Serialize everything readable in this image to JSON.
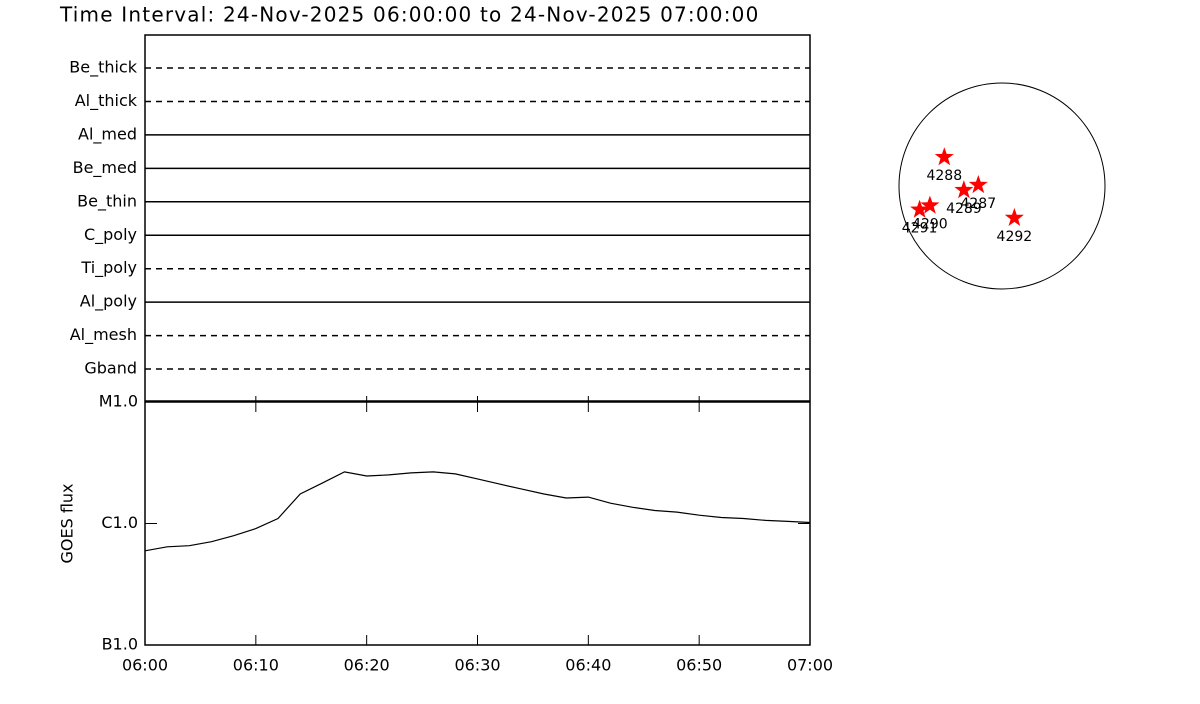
{
  "title": "Time Interval: 24-Nov-2025 06:00:00 to 24-Nov-2025 07:00:00",
  "chart_data": [
    {
      "type": "filters",
      "categories": [
        "Be_thick",
        "Al_thick",
        "Al_med",
        "Be_med",
        "Be_thin",
        "C_poly",
        "Ti_poly",
        "Al_poly",
        "Al_mesh",
        "Gband"
      ],
      "styles": [
        "dashed",
        "dashed",
        "solid",
        "solid",
        "solid",
        "solid",
        "dashed",
        "solid",
        "dashed",
        "dashed"
      ],
      "color": "#000000"
    },
    {
      "type": "line",
      "ylabel": "GOES flux",
      "log_scale": true,
      "color": "#000000",
      "x": [
        "06:00",
        "06:02",
        "06:04",
        "06:06",
        "06:08",
        "06:10",
        "06:12",
        "06:14",
        "06:16",
        "06:18",
        "06:20",
        "06:22",
        "06:24",
        "06:26",
        "06:28",
        "06:30",
        "06:32",
        "06:34",
        "06:36",
        "06:38",
        "06:40",
        "06:42",
        "06:44",
        "06:46",
        "06:48",
        "06:50",
        "06:52",
        "06:54",
        "06:56",
        "06:58",
        "07:00"
      ],
      "values": [
        5.96e-07,
        6.43e-07,
        6.56e-07,
        7.08e-07,
        7.94e-07,
        9.08e-07,
        1.1e-06,
        1.75e-06,
        2.15e-06,
        2.66e-06,
        2.46e-06,
        2.51e-06,
        2.61e-06,
        2.66e-06,
        2.56e-06,
        2.33e-06,
        2.11e-06,
        1.92e-06,
        1.75e-06,
        1.62e-06,
        1.65e-06,
        1.47e-06,
        1.36e-06,
        1.28e-06,
        1.24e-06,
        1.17e-06,
        1.12e-06,
        1.1e-06,
        1.06e-06,
        1.04e-06,
        1.02e-06
      ],
      "xlim": [
        "06:00",
        "07:00"
      ],
      "xticks": [
        "06:00",
        "06:10",
        "06:20",
        "06:30",
        "06:40",
        "06:50",
        "07:00"
      ],
      "ylim": [
        1e-07,
        1e-05
      ],
      "yticks": [
        {
          "value": 1e-07,
          "label": "B1.0"
        },
        {
          "value": 1e-06,
          "label": "C1.0"
        },
        {
          "value": 1e-05,
          "label": "M1.0"
        }
      ]
    },
    {
      "type": "scatter",
      "marker": "star",
      "color": "#ff0000",
      "labels": [
        "4288",
        "4287",
        "4289",
        "4290",
        "4291",
        "4292"
      ],
      "x": [
        -0.56,
        -0.23,
        -0.37,
        -0.7,
        -0.8,
        0.12
      ],
      "values": [
        0.28,
        0.01,
        -0.04,
        -0.19,
        -0.23,
        -0.31
      ],
      "xlim": [
        -1,
        1
      ],
      "ylim": [
        -1,
        1
      ]
    }
  ]
}
